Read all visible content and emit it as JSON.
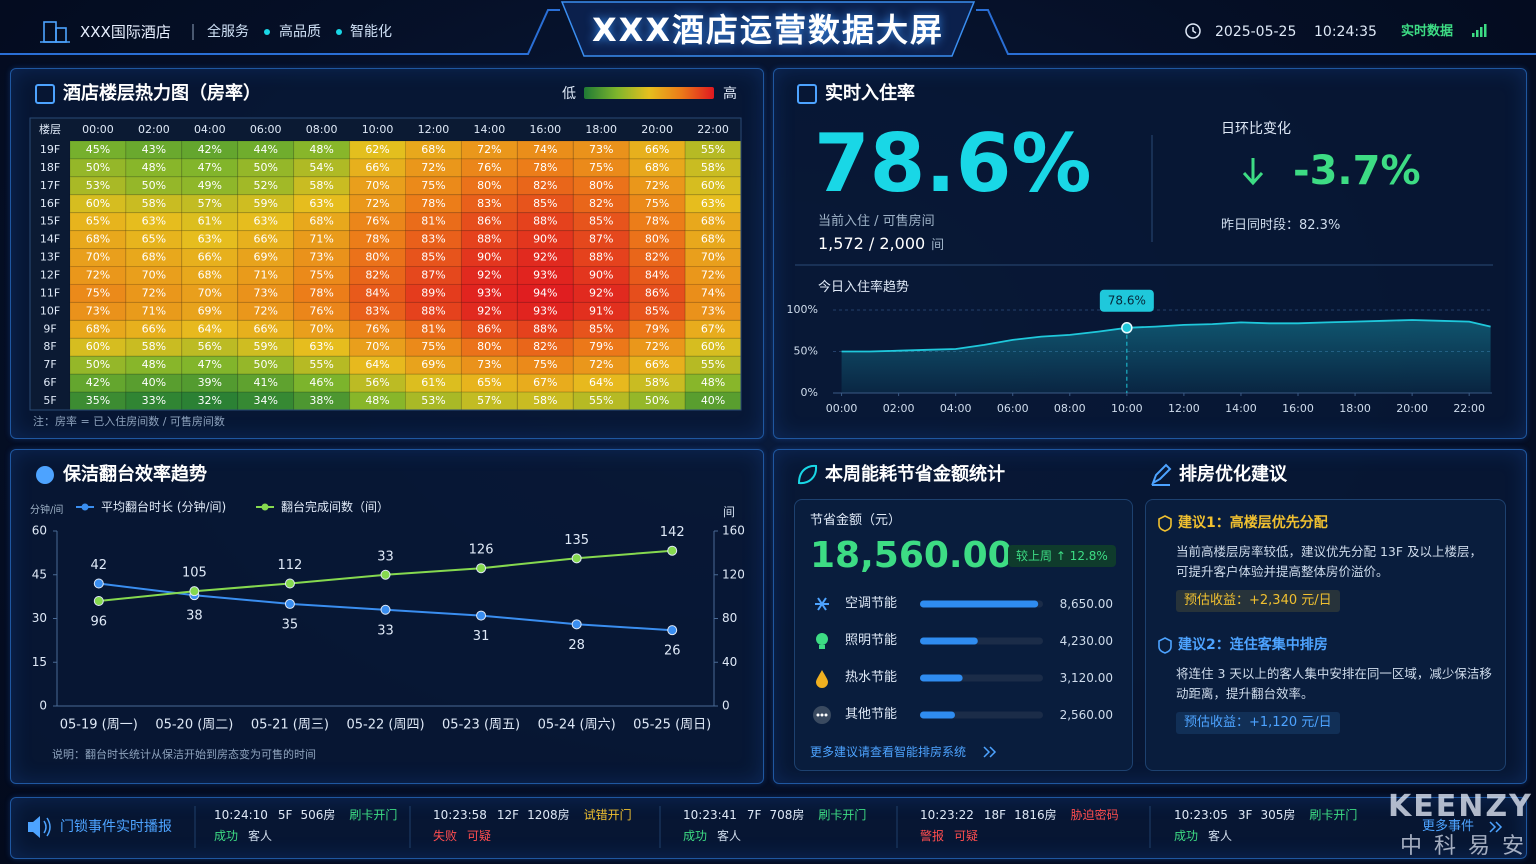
{
  "header": {
    "hotel": "XXX国际酒店",
    "tags": [
      "全服务",
      "高品质",
      "智能化"
    ],
    "title": "XXX酒店运营数据大屏",
    "date": "2025-05-25",
    "time": "10:24:35",
    "live": "实时数据"
  },
  "heatmap": {
    "type": "heatmap",
    "title": "酒店楼层热力图（房率）",
    "legend_low": "低",
    "legend_high": "高",
    "corner_label": "楼层",
    "columns": [
      "00:00",
      "02:00",
      "04:00",
      "06:00",
      "08:00",
      "10:00",
      "12:00",
      "14:00",
      "16:00",
      "18:00",
      "20:00",
      "22:00"
    ],
    "rows": [
      "19F",
      "18F",
      "17F",
      "16F",
      "15F",
      "14F",
      "13F",
      "12F",
      "11F",
      "10F",
      "9F",
      "8F",
      "7F",
      "6F",
      "5F"
    ],
    "values": [
      [
        45,
        43,
        42,
        44,
        48,
        62,
        68,
        72,
        74,
        73,
        66,
        55
      ],
      [
        50,
        48,
        47,
        50,
        54,
        66,
        72,
        76,
        78,
        75,
        68,
        58
      ],
      [
        53,
        50,
        49,
        52,
        58,
        70,
        75,
        80,
        82,
        80,
        72,
        60
      ],
      [
        60,
        58,
        57,
        59,
        63,
        72,
        78,
        83,
        85,
        82,
        75,
        63
      ],
      [
        65,
        63,
        61,
        63,
        68,
        76,
        81,
        86,
        88,
        85,
        78,
        68
      ],
      [
        68,
        65,
        63,
        66,
        71,
        78,
        83,
        88,
        90,
        87,
        80,
        68
      ],
      [
        70,
        68,
        66,
        69,
        73,
        80,
        85,
        90,
        92,
        88,
        82,
        70
      ],
      [
        72,
        70,
        68,
        71,
        75,
        82,
        87,
        92,
        93,
        90,
        84,
        72
      ],
      [
        75,
        72,
        70,
        73,
        78,
        84,
        89,
        93,
        94,
        92,
        86,
        74
      ],
      [
        73,
        71,
        69,
        72,
        76,
        83,
        88,
        92,
        93,
        91,
        85,
        73
      ],
      [
        68,
        66,
        64,
        66,
        70,
        76,
        81,
        86,
        88,
        85,
        79,
        67
      ],
      [
        60,
        58,
        56,
        59,
        63,
        70,
        75,
        80,
        82,
        79,
        72,
        60
      ],
      [
        50,
        48,
        47,
        50,
        55,
        64,
        69,
        73,
        75,
        72,
        66,
        55
      ],
      [
        42,
        40,
        39,
        41,
        46,
        56,
        61,
        65,
        67,
        64,
        58,
        48
      ],
      [
        35,
        33,
        32,
        34,
        38,
        48,
        53,
        57,
        58,
        55,
        50,
        40
      ]
    ],
    "value_labels": [
      [
        "45%",
        "43%",
        "42%",
        "44%",
        "48%",
        "62%",
        "68%",
        "72%",
        "74%",
        "73%",
        "66%",
        "55%"
      ],
      [
        "50%",
        "48%",
        "47%",
        "50%",
        "54%",
        "66%",
        "72%",
        "76%",
        "78%",
        "75%",
        "68%",
        "58%"
      ],
      [
        "53%",
        "50%",
        "49%",
        "52%",
        "58%",
        "70%",
        "75%",
        "80%",
        "82%",
        "80%",
        "72%",
        "60%"
      ],
      [
        "60%",
        "58%",
        "57%",
        "59%",
        "63%",
        "72%",
        "78%",
        "83%",
        "85%",
        "82%",
        "75%",
        "63%"
      ],
      [
        "65%",
        "63%",
        "61%",
        "63%",
        "68%",
        "76%",
        "81%",
        "86%",
        "88%",
        "85%",
        "78%",
        "68%"
      ],
      [
        "68%",
        "65%",
        "63%",
        "66%",
        "71%",
        "78%",
        "83%",
        "88%",
        "90%",
        "87%",
        "80%",
        "68%"
      ],
      [
        "70%",
        "68%",
        "66%",
        "69%",
        "73%",
        "80%",
        "85%",
        "90%",
        "92%",
        "88%",
        "82%",
        "70%"
      ],
      [
        "72%",
        "70%",
        "68%",
        "71%",
        "75%",
        "82%",
        "87%",
        "92%",
        "93%",
        "90%",
        "84%",
        "72%"
      ],
      [
        "75%",
        "72%",
        "70%",
        "73%",
        "78%",
        "84%",
        "89%",
        "93%",
        "94%",
        "92%",
        "86%",
        "74%"
      ],
      [
        "73%",
        "71%",
        "69%",
        "72%",
        "76%",
        "83%",
        "88%",
        "92%",
        "93%",
        "91%",
        "85%",
        "73%"
      ],
      [
        "68%",
        "66%",
        "64%",
        "66%",
        "70%",
        "76%",
        "81%",
        "86%",
        "88%",
        "85%",
        "79%",
        "67%"
      ],
      [
        "60%",
        "58%",
        "56%",
        "59%",
        "63%",
        "70%",
        "75%",
        "80%",
        "82%",
        "79%",
        "72%",
        "60%"
      ],
      [
        "50%",
        "48%",
        "47%",
        "50%",
        "55%",
        "64%",
        "69%",
        "73%",
        "75%",
        "72%",
        "66%",
        "55%"
      ],
      [
        "42%",
        "40%",
        "39%",
        "41%",
        "46%",
        "56%",
        "61%",
        "65%",
        "67%",
        "64%",
        "58%",
        "48%"
      ],
      [
        "35%",
        "33%",
        "32%",
        "34%",
        "38%",
        "48%",
        "53%",
        "57%",
        "58%",
        "55%",
        "50%",
        "40%"
      ]
    ],
    "clim": [
      30,
      95
    ],
    "colors": [
      "#1f7a35",
      "#7db52c",
      "#e6bf1e",
      "#ec7a19",
      "#df1820"
    ],
    "note": "注：房率 = 已入住房间数 / 可售房间数"
  },
  "occupancy": {
    "title": "实时入住率",
    "rate": "78.6%",
    "rate_caption": "当前入住 / 可售房间",
    "rooms": "1,572 / 2,000",
    "rooms_unit": "间",
    "change_title": "日环比变化",
    "change": "-3.7%",
    "change_caption": "昨日同时段：82.3%",
    "trend": {
      "type": "area",
      "title": "今日入住率趋势",
      "x": [
        0,
        1,
        2,
        3,
        4,
        5,
        6,
        7,
        8,
        9,
        10,
        11,
        12,
        13,
        14,
        15,
        16,
        17,
        18,
        19,
        20,
        21,
        22,
        22.75
      ],
      "values": [
        50,
        50,
        51,
        52,
        53,
        58,
        64,
        68,
        70,
        74,
        78.6,
        80,
        82,
        83,
        85,
        84,
        84,
        85,
        86,
        87,
        88,
        87,
        86,
        80
      ],
      "color": "#1fc8db",
      "xlim": [
        -0.3,
        22.8
      ],
      "ylim": [
        0,
        100
      ],
      "xticks": [
        {
          "value": 0,
          "label": "00:00"
        },
        {
          "value": 2,
          "label": "02:00"
        },
        {
          "value": 4,
          "label": "04:00"
        },
        {
          "value": 6,
          "label": "06:00"
        },
        {
          "value": 8,
          "label": "08:00"
        },
        {
          "value": 10,
          "label": "10:00"
        },
        {
          "value": 12,
          "label": "12:00"
        },
        {
          "value": 14,
          "label": "14:00"
        },
        {
          "value": 16,
          "label": "16:00"
        },
        {
          "value": 18,
          "label": "18:00"
        },
        {
          "value": 20,
          "label": "20:00"
        },
        {
          "value": 22,
          "label": "22:00"
        }
      ],
      "yticks": [
        {
          "value": 0,
          "label": "0%"
        },
        {
          "value": 50,
          "label": "50%"
        },
        {
          "value": 100,
          "label": "100%"
        }
      ],
      "grid": true,
      "marker": {
        "x": 10,
        "value": 78.6,
        "label": "78.6%"
      }
    }
  },
  "cleaning": {
    "title": "保洁翻台效率趋势",
    "chart": {
      "type": "line",
      "categories": [
        "05-19 (周一)",
        "05-20 (周二)",
        "05-21 (周三)",
        "05-22 (周四)",
        "05-23 (周五)",
        "05-24 (周六)",
        "05-25 (周日)"
      ],
      "series": [
        {
          "name": "平均翻台时长 (分钟/间)",
          "color": "#3a8ef0",
          "values": [
            42,
            38,
            35,
            33,
            31,
            28,
            26
          ]
        },
        {
          "name": "翻台完成间数（间）",
          "color": "#86d94f",
          "axis": "y2",
          "values": [
            96,
            105,
            112,
            120,
            126,
            135,
            142
          ],
          "value_labels": [
            "96",
            "105",
            "112",
            null,
            "126",
            "135",
            "142"
          ]
        }
      ],
      "ylabel": "分钟/间",
      "y2label": "间",
      "ylim": [
        0,
        60
      ],
      "yticks": [
        0,
        15,
        30,
        45,
        60
      ],
      "y2lim": [
        0,
        160
      ],
      "y2ticks": [
        0,
        40,
        80,
        120,
        160
      ],
      "annotations": [
        {
          "text": "33",
          "x": "05-22 (周四)"
        }
      ]
    },
    "note": "说明：翻台时长统计从保洁开始到房态变为可售的时间"
  },
  "energy": {
    "title": "本周能耗节省金额统计",
    "total_caption": "节省金额（元）",
    "total": "18,560.00",
    "compare": "较上周 ↑ 12.8%",
    "items": {
      "type": "bar",
      "categories": [
        "空调节能",
        "照明节能",
        "热水节能",
        "其他节能"
      ],
      "values": [
        8650,
        4230,
        3120,
        2560
      ],
      "value_labels": [
        "8,650.00",
        "4,230.00",
        "3,120.00",
        "2,560.00"
      ],
      "color": "#2f8cf0",
      "xlim": [
        0,
        9000
      ]
    },
    "link": "更多建议请查看智能排房系统"
  },
  "suggestions": {
    "title": "排房优化建议",
    "items": [
      {
        "title": "建议1：高楼层优先分配",
        "text": "当前高楼层房率较低，建议优先分配 13F 及以上楼层，可提升客户体验并提高整体房价溢价。",
        "gain": "预估收益：+2,340 元/日",
        "color": "#f0c030"
      },
      {
        "title": "建议2：连住客集中排房",
        "text": "将连住 3 天以上的客人集中安排在同一区域，减少保洁移动距离，提升翻台效率。",
        "gain": "预估收益：+1,120 元/日",
        "color": "#4da3ff"
      }
    ]
  },
  "ticker": {
    "title": "门锁事件实时播报",
    "events": [
      {
        "time": "10:24:10",
        "floor": "5F",
        "room": "506房",
        "action": "刷卡开门",
        "status": "成功",
        "who": "客人",
        "action_color": "#3ddc84",
        "status_color": "#3ddc84",
        "who_color": "#cfdcec"
      },
      {
        "time": "10:23:58",
        "floor": "12F",
        "room": "1208房",
        "action": "试错开门",
        "status": "失败",
        "who": "可疑",
        "action_color": "#f0c030",
        "status_color": "#ff4d4f",
        "who_color": "#ff4d4f"
      },
      {
        "time": "10:23:41",
        "floor": "7F",
        "room": "708房",
        "action": "刷卡开门",
        "status": "成功",
        "who": "客人",
        "action_color": "#3ddc84",
        "status_color": "#3ddc84",
        "who_color": "#cfdcec"
      },
      {
        "time": "10:23:22",
        "floor": "18F",
        "room": "1816房",
        "action": "胁迫密码",
        "status": "警报",
        "who": "可疑",
        "action_color": "#ff4d4f",
        "status_color": "#ff4d4f",
        "who_color": "#ff4d4f"
      },
      {
        "time": "10:23:05",
        "floor": "3F",
        "room": "305房",
        "action": "刷卡开门",
        "status": "成功",
        "who": "客人",
        "action_color": "#3ddc84",
        "status_color": "#3ddc84",
        "who_color": "#cfdcec"
      }
    ],
    "more": "更多事件"
  },
  "watermark": {
    "brand": "KEENZY",
    "sub": "中科易安"
  }
}
